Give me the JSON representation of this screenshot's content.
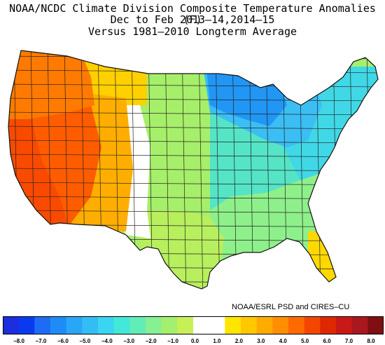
{
  "title": {
    "line1": "NOAA/NCDC Climate Division Composite Temperature Anomalies (F)",
    "line2": "Dec to Feb  2013–14,2014–15",
    "line3": "Versus 1981–2010 Longterm Average"
  },
  "credit": "NOAA/ESRL PSD and CIRES–CU",
  "colorbar": {
    "colors": [
      "#1c2ede",
      "#0a3af0",
      "#1e6cf5",
      "#1e8cf7",
      "#2aa6f7",
      "#33bdf5",
      "#3ad5f0",
      "#43e8d8",
      "#63edb6",
      "#86f093",
      "#a5ef6e",
      "#c7f056",
      "#ffffff",
      "#ffffff",
      "#ffe500",
      "#ffc800",
      "#ffab00",
      "#ff8e00",
      "#ff6a00",
      "#f34700",
      "#de2800",
      "#c91818",
      "#a9181e",
      "#7f0f12"
    ],
    "labels": [
      "−8.0",
      "−7.0",
      "−6.0",
      "−5.0",
      "−4.0",
      "−3.0",
      "−2.0",
      "−1.0",
      "0.0",
      "1.0",
      "2.0",
      "3.0",
      "4.0",
      "5.0",
      "6.0",
      "7.0",
      "8.0"
    ]
  },
  "map": {
    "regions": [
      {
        "name": "pacific-northwest",
        "color": "#ff7a00"
      },
      {
        "name": "california",
        "color": "#f84a00"
      },
      {
        "name": "great-basin",
        "color": "#ff5c00"
      },
      {
        "name": "rockies",
        "color": "#ffae00"
      },
      {
        "name": "montana-wyoming",
        "color": "#ffd000"
      },
      {
        "name": "plains-neutral",
        "color": "#ffffff"
      },
      {
        "name": "great-plains",
        "color": "#a6ef6a"
      },
      {
        "name": "midwest",
        "color": "#55e4c6"
      },
      {
        "name": "upper-midwest",
        "color": "#2196f5"
      },
      {
        "name": "great-lakes",
        "color": "#3bbef3"
      },
      {
        "name": "northeast",
        "color": "#40d8e6"
      },
      {
        "name": "southeast",
        "color": "#8ef08a"
      },
      {
        "name": "texas",
        "color": "#b8ef5e"
      },
      {
        "name": "florida",
        "color": "#ffd800"
      }
    ]
  }
}
